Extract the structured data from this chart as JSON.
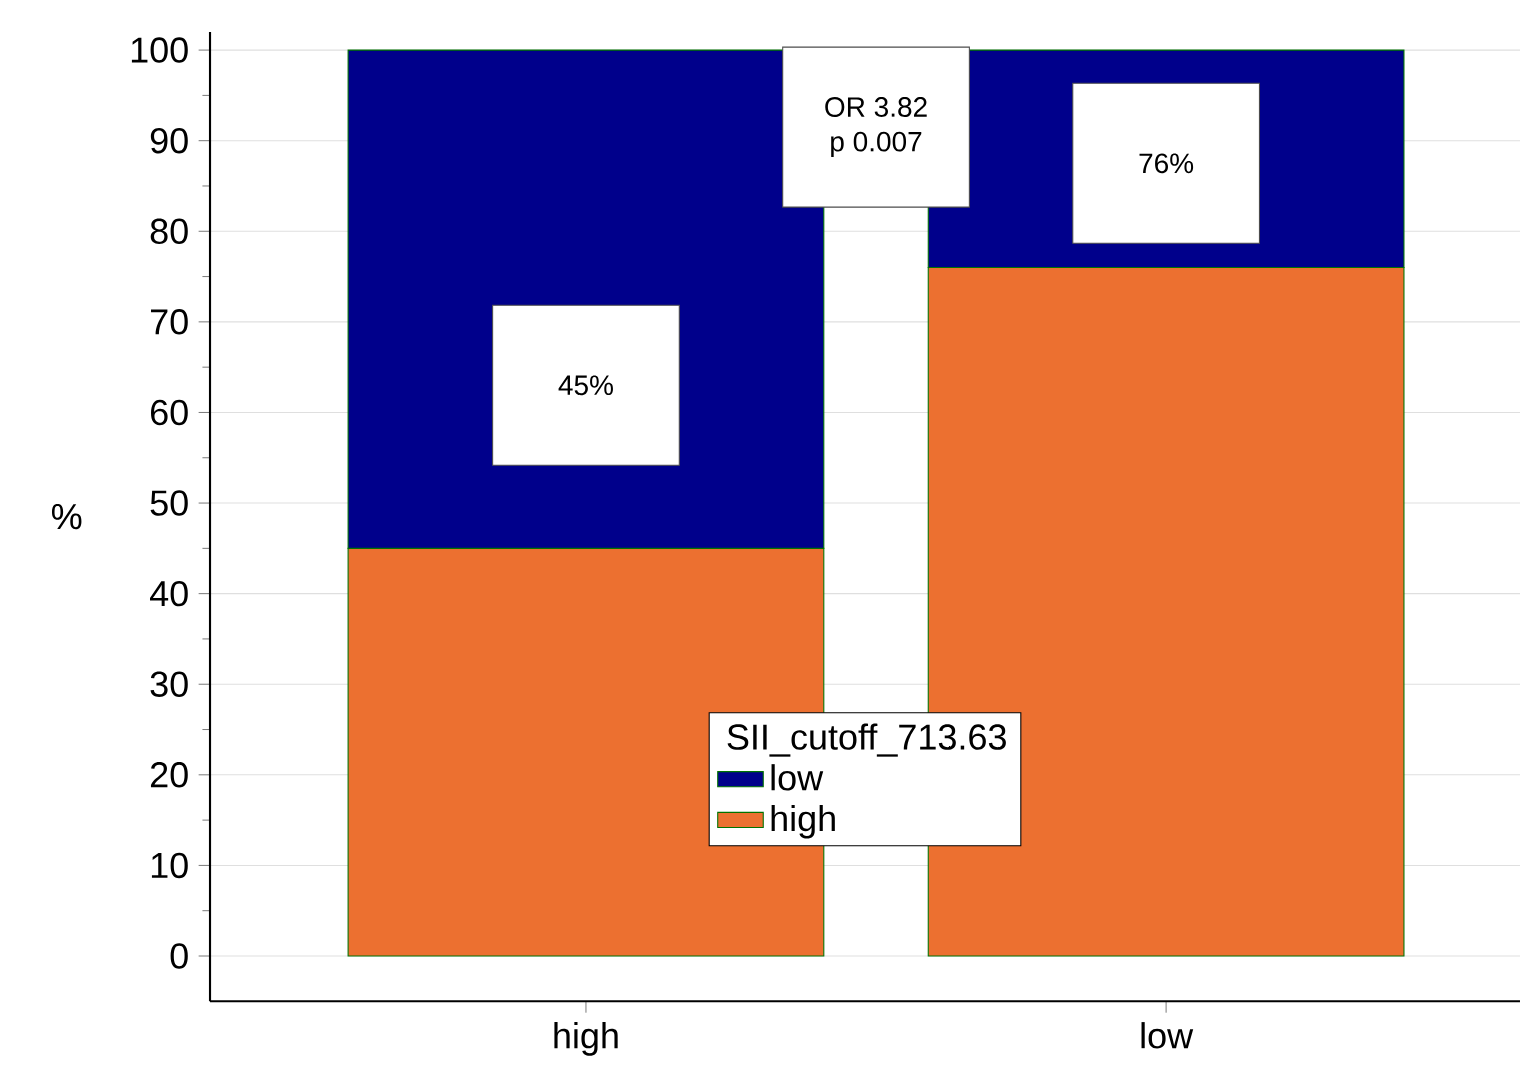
{
  "chart_data": {
    "type": "bar",
    "stacked": true,
    "ylabel": "%",
    "legend_title": "SII_cutoff_713.63",
    "legend": "bottom",
    "grid": "y",
    "categories": [
      "high",
      "low"
    ],
    "series": [
      {
        "name": "high",
        "color": "#ec7030",
        "values": [
          45,
          76
        ]
      },
      {
        "name": "low",
        "color": "#00008b",
        "values": [
          55,
          24
        ]
      }
    ],
    "ylim": [
      -5,
      102
    ],
    "yticks": [
      0,
      10,
      20,
      30,
      40,
      50,
      60,
      70,
      80,
      90,
      100
    ],
    "annotations": [
      "45%",
      "76%",
      "OR 3.82",
      "p 0.007"
    ]
  }
}
